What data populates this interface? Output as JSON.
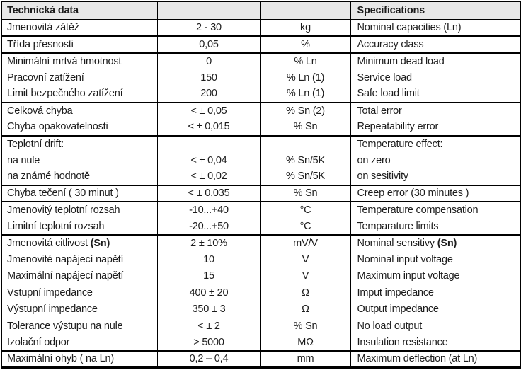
{
  "colors": {
    "header_bg": "#e8e8e8",
    "border": "#000000",
    "text": "#1c1c1c"
  },
  "table": {
    "header": {
      "czech_title": "Technická data",
      "value_col": "",
      "unit_col": "",
      "english_title": "Specifications"
    },
    "rows": [
      {
        "czech": "Jmenovitá zátěž",
        "value": "2 - 30",
        "unit": "kg",
        "english": "Nominal capacities (Ln)"
      },
      {
        "czech": "Třída přesnosti",
        "value": "0,05",
        "unit": "%",
        "english": "Accuracy class"
      },
      {
        "czech": "Minimální mrtvá hmotnost",
        "value": "0",
        "unit": "% Ln",
        "english": "Minimum dead load"
      },
      {
        "czech": "Pracovní zatížení",
        "value": "150",
        "unit": "% Ln (1)",
        "english": "Service load"
      },
      {
        "czech": "Limit bezpečného zatížení",
        "value": "200",
        "unit": "% Ln (1)",
        "english": "Safe load limit"
      },
      {
        "czech": "Celková chyba",
        "value": "< ± 0,05",
        "unit": "% Sn (2)",
        "english": "Total error"
      },
      {
        "czech": "Chyba opakovatelnosti",
        "value": "< ± 0,015",
        "unit": "% Sn",
        "english": "Repeatability error"
      },
      {
        "czech": "Teplotní drift:",
        "value": "",
        "unit": "",
        "english": "Temperature effect:"
      },
      {
        "czech": "na nule",
        "value": "< ± 0,04",
        "unit": "% Sn/5K",
        "english": "on zero"
      },
      {
        "czech": "na známé hodnotě",
        "value": "< ± 0,02",
        "unit": "% Sn/5K",
        "english": "on sesitivity"
      },
      {
        "czech": "Chyba tečení ( 30 minut )",
        "value": "< ± 0,035",
        "unit": "% Sn",
        "english": "Creep error (30 minutes )"
      },
      {
        "czech": "Jmenovitý teplotní rozsah",
        "value": "-10...+40",
        "unit": "°C",
        "english": "Temperature compensation"
      },
      {
        "czech": "Limitní teplotní rozsah",
        "value": "-20...+50",
        "unit": "°C",
        "english": "Temparature limits"
      },
      {
        "czech": "Jmenovitá citlivost ",
        "czech_bold": "(Sn)",
        "value": "2 ± 10%",
        "unit": "mV/V",
        "english": "Nominal sensitivy ",
        "english_bold": "(Sn)"
      },
      {
        "czech": "Jmenovité napájecí napětí",
        "value": "10",
        "unit": "V",
        "english": "Nominal input voltage"
      },
      {
        "czech": "Maximální napájecí napětí",
        "value": "15",
        "unit": "V",
        "english": "Maximum input voltage"
      },
      {
        "czech": "Vstupní impedance",
        "value": "400 ± 20",
        "unit": "Ω",
        "english": "Imput impedance"
      },
      {
        "czech": "Výstupní impedance",
        "value": "350 ± 3",
        "unit": "Ω",
        "english": "Output impedance"
      },
      {
        "czech": "Tolerance výstupu na nule",
        "value": "< ± 2",
        "unit": "% Sn",
        "english": "No load output"
      },
      {
        "czech": "Izolační odpor",
        "value": "> 5000",
        "unit": "MΩ",
        "english": "Insulation resistance"
      },
      {
        "czech": "Maximální ohyb ( na Ln)",
        "value": "0,2 – 0,4",
        "unit": "mm",
        "english": "Maximum deflection (at Ln)"
      }
    ]
  }
}
